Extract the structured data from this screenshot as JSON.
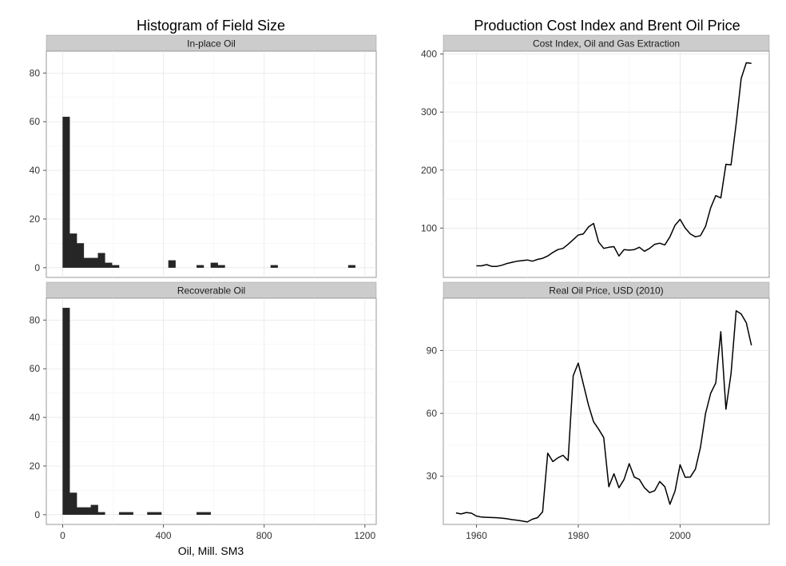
{
  "chart_data": [
    {
      "type": "bar",
      "title": "Histogram of Field Size",
      "xlabel": "Oil, Mill. SM3",
      "ylabel": "",
      "xlim": [
        -65,
        1245
      ],
      "xticks": [
        0,
        400,
        800,
        1200
      ],
      "binwidth": 28,
      "facets": [
        {
          "strip": "In-place Oil",
          "ylim": [
            -4,
            89
          ],
          "yticks": [
            0,
            20,
            40,
            60,
            80
          ],
          "bins": [
            {
              "x": 14,
              "count": 62
            },
            {
              "x": 42,
              "count": 14
            },
            {
              "x": 70,
              "count": 10
            },
            {
              "x": 98,
              "count": 4
            },
            {
              "x": 126,
              "count": 4
            },
            {
              "x": 154,
              "count": 6
            },
            {
              "x": 182,
              "count": 2
            },
            {
              "x": 210,
              "count": 1
            },
            {
              "x": 434,
              "count": 3
            },
            {
              "x": 546,
              "count": 1
            },
            {
              "x": 602,
              "count": 2
            },
            {
              "x": 630,
              "count": 1
            },
            {
              "x": 840,
              "count": 1
            },
            {
              "x": 1148,
              "count": 1
            }
          ]
        },
        {
          "strip": "Recoverable Oil",
          "ylim": [
            -4,
            89
          ],
          "yticks": [
            0,
            20,
            40,
            60,
            80
          ],
          "bins": [
            {
              "x": 14,
              "count": 85
            },
            {
              "x": 42,
              "count": 9
            },
            {
              "x": 70,
              "count": 3
            },
            {
              "x": 98,
              "count": 3
            },
            {
              "x": 126,
              "count": 4
            },
            {
              "x": 154,
              "count": 1
            },
            {
              "x": 238,
              "count": 1
            },
            {
              "x": 266,
              "count": 1
            },
            {
              "x": 350,
              "count": 1
            },
            {
              "x": 378,
              "count": 1
            },
            {
              "x": 546,
              "count": 1
            },
            {
              "x": 574,
              "count": 1
            }
          ]
        }
      ]
    },
    {
      "type": "line",
      "title": "Production Cost Index and Brent Oil Price",
      "xlabel": "",
      "ylabel": "",
      "xlim": [
        1953.5,
        2017.5
      ],
      "xticks": [
        1960,
        1980,
        2000
      ],
      "facets": [
        {
          "strip": "Cost Index, Oil and Gas Extraction",
          "ylim": [
            15,
            405
          ],
          "yticks": [
            100,
            200,
            300,
            400
          ],
          "x": [
            1960,
            1961,
            1962,
            1963,
            1964,
            1965,
            1966,
            1967,
            1968,
            1969,
            1970,
            1971,
            1972,
            1973,
            1974,
            1975,
            1976,
            1977,
            1978,
            1979,
            1980,
            1981,
            1982,
            1983,
            1984,
            1985,
            1986,
            1987,
            1988,
            1989,
            1990,
            1991,
            1992,
            1993,
            1994,
            1995,
            1996,
            1997,
            1998,
            1999,
            2000,
            2001,
            2002,
            2003,
            2004,
            2005,
            2006,
            2007,
            2008,
            2009,
            2010,
            2011,
            2012,
            2013,
            2014
          ],
          "y": [
            35,
            35,
            37,
            34,
            34,
            36,
            39,
            41,
            43,
            44,
            45,
            43,
            46,
            48,
            52,
            58,
            63,
            65,
            72,
            80,
            88,
            90,
            102,
            108,
            76,
            65,
            67,
            68,
            52,
            63,
            62,
            63,
            67,
            60,
            65,
            72,
            74,
            71,
            85,
            105,
            115,
            100,
            90,
            85,
            87,
            103,
            135,
            156,
            152,
            210,
            209,
            280,
            358,
            385,
            384
          ]
        },
        {
          "strip": "Real Oil Price, USD (2010)",
          "ylim": [
            7,
            115
          ],
          "yticks": [
            30,
            60,
            90
          ],
          "x": [
            1956,
            1957,
            1958,
            1959,
            1960,
            1961,
            1962,
            1963,
            1964,
            1965,
            1966,
            1967,
            1968,
            1969,
            1970,
            1971,
            1972,
            1973,
            1974,
            1975,
            1976,
            1977,
            1978,
            1979,
            1980,
            1981,
            1982,
            1983,
            1984,
            1985,
            1986,
            1987,
            1988,
            1989,
            1990,
            1991,
            1992,
            1993,
            1994,
            1995,
            1996,
            1997,
            1998,
            1999,
            2000,
            2001,
            2002,
            2003,
            2004,
            2005,
            2006,
            2007,
            2008,
            2009,
            2010,
            2011,
            2012,
            2013,
            2014
          ],
          "y": [
            12.5,
            12,
            12.7,
            12.4,
            11,
            10.5,
            10.4,
            10.3,
            10.2,
            10,
            9.7,
            9.3,
            9,
            8.6,
            8.2,
            9.5,
            10.2,
            13,
            41,
            37,
            38.8,
            40,
            37.5,
            78,
            84,
            74,
            64,
            56,
            52.5,
            48.5,
            25,
            31.2,
            24.5,
            28.5,
            36,
            29.6,
            28.5,
            24.5,
            22.2,
            23.1,
            27.5,
            25,
            16.6,
            23,
            35.5,
            29.5,
            29.6,
            33.4,
            43.8,
            60,
            69.6,
            74.6,
            99,
            62,
            79,
            109,
            107.5,
            103.3,
            92.5
          ]
        }
      ]
    }
  ]
}
